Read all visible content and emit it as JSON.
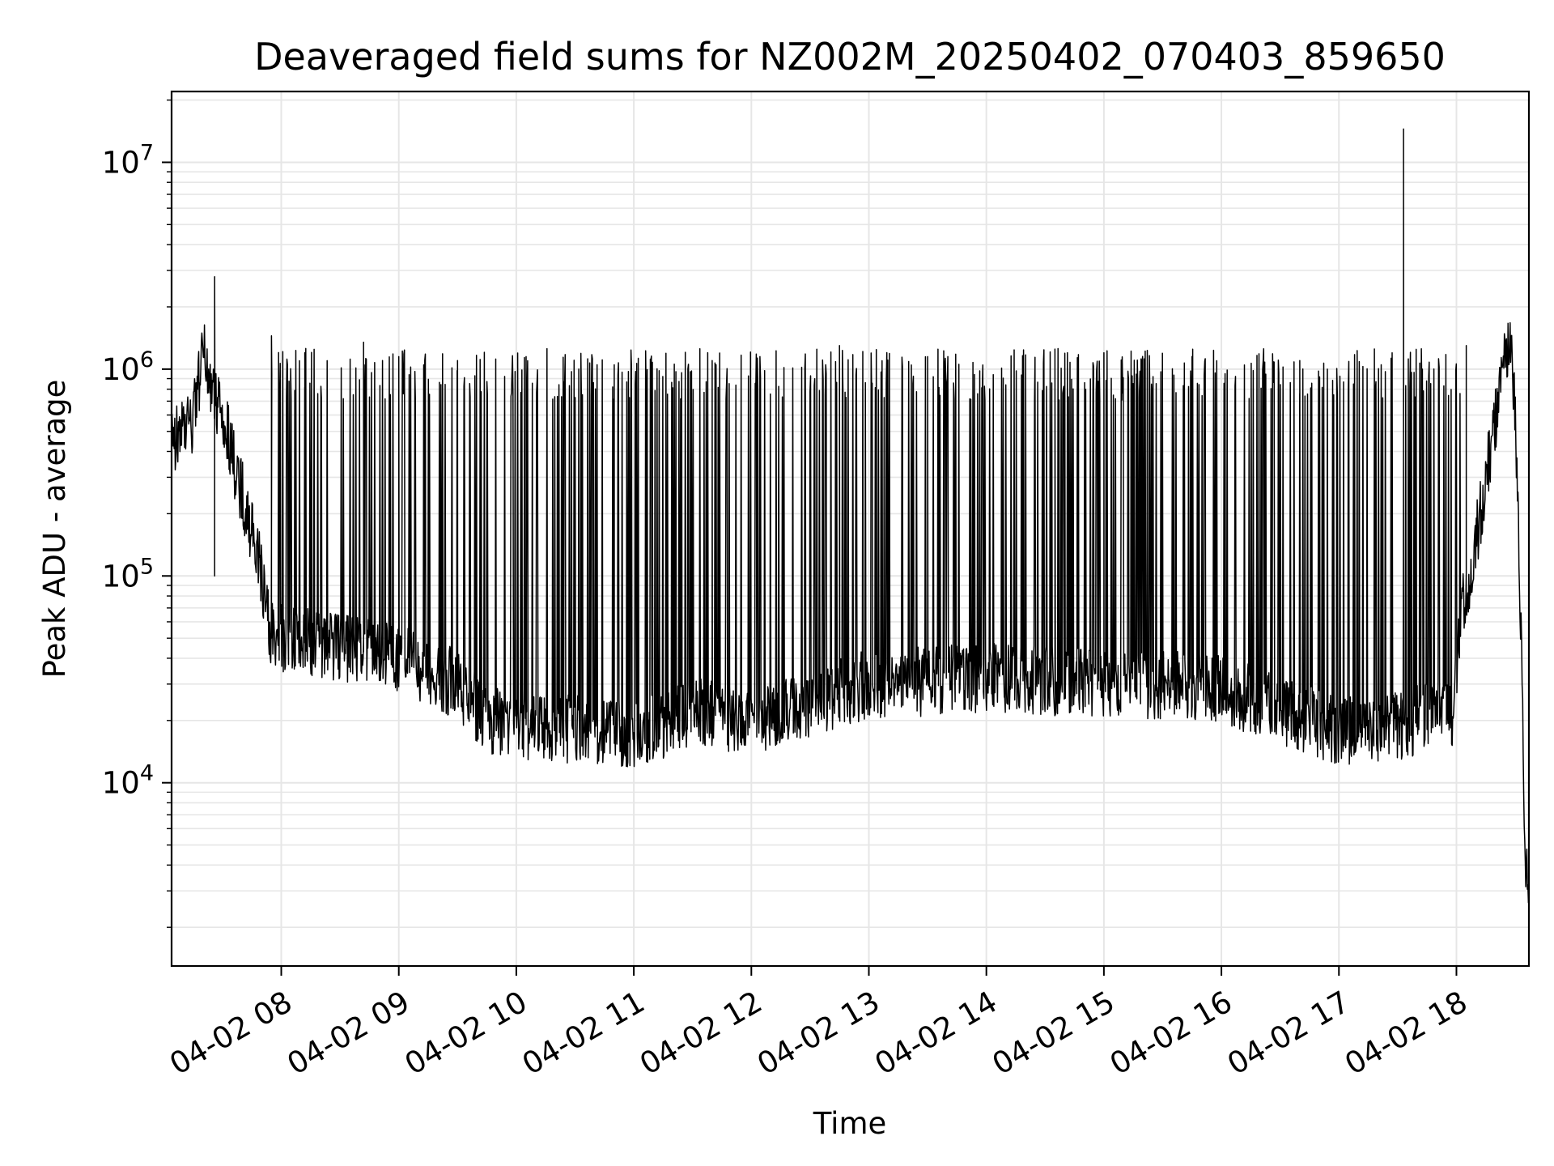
{
  "chart_data": {
    "type": "line",
    "title": "Deaveraged field sums for NZ002M_20250402_070403_859650",
    "xlabel": "Time",
    "ylabel": "Peak ADU - average",
    "yscale": "log",
    "grid": true,
    "x_tick_labels": [
      "04-02 08",
      "04-02 09",
      "04-02 10",
      "04-02 11",
      "04-02 12",
      "04-02 13",
      "04-02 14",
      "04-02 15",
      "04-02 16",
      "04-02 17",
      "04-02 18"
    ],
    "y_tick_labels": [
      {
        "base": "10",
        "exp": "4"
      },
      {
        "base": "10",
        "exp": "5"
      },
      {
        "base": "10",
        "exp": "6"
      },
      {
        "base": "10",
        "exp": "7"
      }
    ],
    "xlim": [
      "2025-04-02 07:04",
      "2025-04-02 18:37"
    ],
    "ylim": [
      1300,
      22000000
    ],
    "series": [
      {
        "color": "#000000",
        "baseline": [
          [
            "2025-04-02 07:04",
            450000
          ],
          [
            "2025-04-02 07:15",
            550000
          ],
          [
            "2025-04-02 07:20",
            1200000
          ],
          [
            "2025-04-02 07:25",
            800000
          ],
          [
            "2025-04-02 07:30",
            600000
          ],
          [
            "2025-04-02 07:40",
            250000
          ],
          [
            "2025-04-02 07:48",
            130000
          ],
          [
            "2025-04-02 07:55",
            50000
          ],
          [
            "2025-04-02 08:30",
            45000
          ],
          [
            "2025-04-02 09:00",
            40000
          ],
          [
            "2025-04-02 09:30",
            30000
          ],
          [
            "2025-04-02 09:45",
            20000
          ],
          [
            "2025-04-02 10:30",
            18000
          ],
          [
            "2025-04-02 11:00",
            17000
          ],
          [
            "2025-04-02 11:30",
            22000
          ],
          [
            "2025-04-02 12:00",
            20000
          ],
          [
            "2025-04-02 12:30",
            24000
          ],
          [
            "2025-04-02 13:00",
            30000
          ],
          [
            "2025-04-02 14:00",
            32000
          ],
          [
            "2025-04-02 14:30",
            31000
          ],
          [
            "2025-04-02 15:00",
            30000
          ],
          [
            "2025-04-02 16:00",
            29000
          ],
          [
            "2025-04-02 16:30",
            22000
          ],
          [
            "2025-04-02 17:00",
            18000
          ],
          [
            "2025-04-02 17:30",
            19000
          ],
          [
            "2025-04-02 17:58",
            22000
          ],
          [
            "2025-04-02 18:02",
            60000
          ],
          [
            "2025-04-02 18:10",
            150000
          ],
          [
            "2025-04-02 18:20",
            600000
          ],
          [
            "2025-04-02 18:27",
            1500000
          ],
          [
            "2025-04-02 18:30",
            600000
          ],
          [
            "2025-04-02 18:33",
            50000
          ],
          [
            "2025-04-02 18:35",
            5000
          ],
          [
            "2025-04-02 18:37",
            2000
          ]
        ],
        "spikes": [
          [
            "2025-04-02 07:26",
            2800000
          ],
          [
            "2025-04-02 07:26",
            100000
          ],
          [
            "2025-04-02 07:55",
            1450000
          ],
          [
            "2025-04-02 08:12",
            1200000
          ],
          [
            "2025-04-02 08:42",
            1350000
          ],
          [
            "2025-04-02 09:00",
            1150000
          ],
          [
            "2025-04-02 09:30",
            1100000
          ],
          [
            "2025-04-02 10:05",
            1150000
          ],
          [
            "2025-04-02 10:50",
            1050000
          ],
          [
            "2025-04-02 11:40",
            1100000
          ],
          [
            "2025-04-02 12:45",
            1300000
          ],
          [
            "2025-04-02 13:30",
            1150000
          ],
          [
            "2025-04-02 14:35",
            1250000
          ],
          [
            "2025-04-02 15:00",
            1200000
          ],
          [
            "2025-04-02 15:45",
            1150000
          ],
          [
            "2025-04-02 16:40",
            1100000
          ],
          [
            "2025-04-02 17:33",
            14500000
          ],
          [
            "2025-04-02 18:05",
            1300000
          ]
        ]
      }
    ]
  }
}
